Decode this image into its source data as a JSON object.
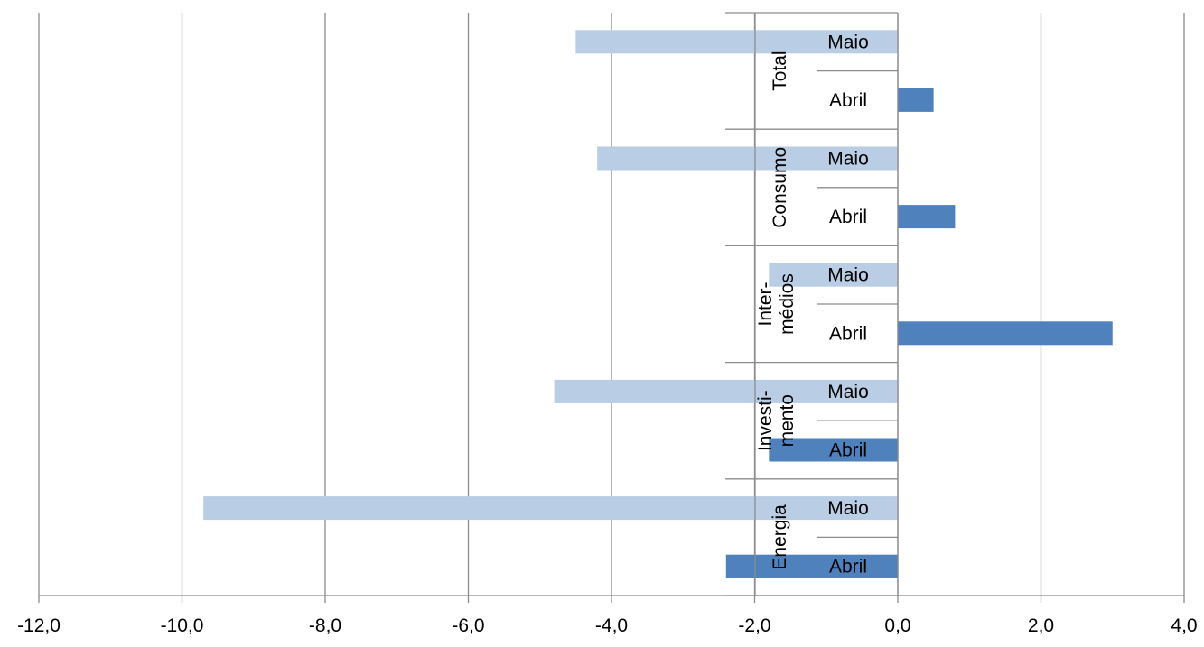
{
  "chart_data": {
    "type": "bar",
    "orientation": "horizontal",
    "xlim": [
      -12,
      4
    ],
    "x_ticks": [
      -12,
      -10,
      -8,
      -6,
      -4,
      -2,
      0,
      2,
      4
    ],
    "x_tick_labels": [
      "-12,0",
      "-10,0",
      "-8,0",
      "-6,0",
      "-4,0",
      "-2,0",
      "0,0",
      "2,0",
      "4,0"
    ],
    "grid": true,
    "legend": "none",
    "colors": {
      "Maio": "#b9cde5",
      "Abril": "#4f81bd",
      "grid": "#8c8c8c"
    },
    "groups": [
      {
        "label": [
          "Total"
        ],
        "bars": [
          {
            "month": "Maio",
            "value": -4.5
          },
          {
            "month": "Abril",
            "value": 0.5
          }
        ]
      },
      {
        "label": [
          "Consumo"
        ],
        "bars": [
          {
            "month": "Maio",
            "value": -4.2
          },
          {
            "month": "Abril",
            "value": 0.8
          }
        ]
      },
      {
        "label": [
          "Inter-",
          "médios"
        ],
        "bars": [
          {
            "month": "Maio",
            "value": -1.8
          },
          {
            "month": "Abril",
            "value": 3.0
          }
        ]
      },
      {
        "label": [
          "Investi-",
          "mento"
        ],
        "bars": [
          {
            "month": "Maio",
            "value": -4.8
          },
          {
            "month": "Abril",
            "value": -1.8
          }
        ]
      },
      {
        "label": [
          "Energia"
        ],
        "bars": [
          {
            "month": "Maio",
            "value": -9.7
          },
          {
            "month": "Abril",
            "value": -2.4
          }
        ]
      }
    ]
  }
}
